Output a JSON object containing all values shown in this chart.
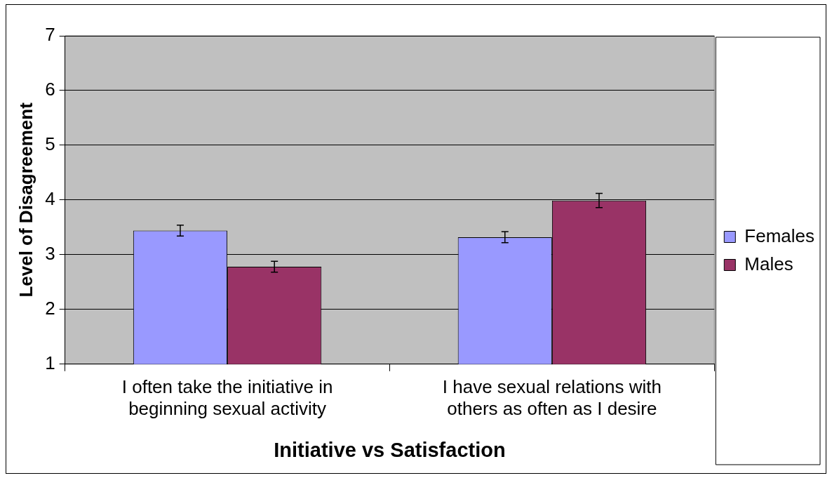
{
  "chart_data": {
    "type": "bar",
    "xlabel": "Initiative vs Satisfaction",
    "ylabel": "Level of Disagreement",
    "categories": [
      "I often take the initiative in beginning sexual activity",
      "I have sexual relations with others as often as I desire"
    ],
    "series": [
      {
        "name": "Females",
        "color": "#9999ff",
        "values": [
          3.44,
          3.32
        ],
        "errors": [
          0.1,
          0.1
        ]
      },
      {
        "name": "Males",
        "color": "#993366",
        "values": [
          2.78,
          3.99
        ],
        "errors": [
          0.1,
          0.13
        ]
      }
    ],
    "ylim": [
      1,
      7
    ],
    "yticks": [
      1,
      2,
      3,
      4,
      5,
      6,
      7
    ],
    "grid": "y",
    "legend": "right"
  }
}
